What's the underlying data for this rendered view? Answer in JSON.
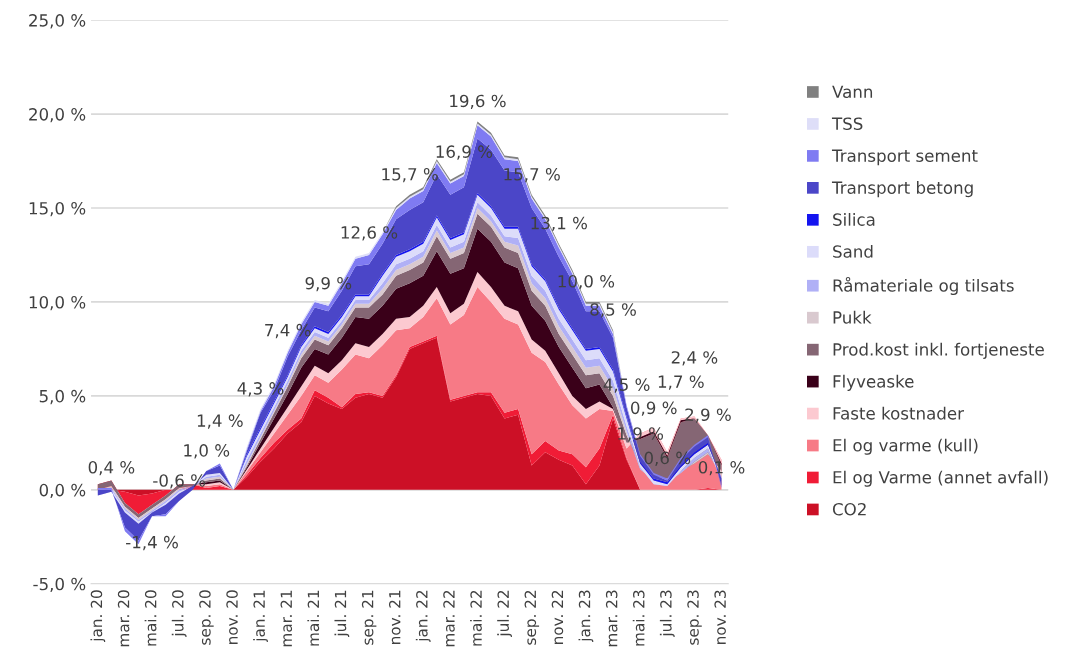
{
  "chart_data": {
    "type": "area",
    "stacked": true,
    "categories": [
      "jan. 20",
      null,
      "mar. 20",
      null,
      "mai. 20",
      null,
      "jul. 20",
      null,
      "sep. 20",
      null,
      "nov. 20",
      null,
      "jan. 21",
      null,
      "mar. 21",
      null,
      "mai. 21",
      null,
      "jul. 21",
      null,
      "sep. 21",
      null,
      "nov. 21",
      null,
      "jan. 22",
      null,
      "mar. 22",
      null,
      "mai. 22",
      null,
      "jul. 22",
      null,
      "sep. 22",
      null,
      "nov. 22",
      null,
      "jan. 23",
      null,
      "mar. 23",
      null,
      "mai. 23",
      null,
      "jul. 23",
      null,
      "sep. 23",
      null,
      "nov. 23"
    ],
    "series": [
      {
        "name": "CO2",
        "color": "#cc1026",
        "values": [
          0,
          0,
          -0.1,
          -0.3,
          -0.2,
          0,
          0,
          0,
          0,
          0,
          0,
          0.7,
          1.5,
          2.2,
          3.0,
          3.6,
          5.0,
          4.6,
          4.3,
          4.9,
          5.1,
          4.9,
          6.0,
          7.5,
          7.8,
          8.1,
          4.7,
          4.9,
          5.1,
          5.0,
          3.8,
          4.0,
          1.3,
          2.0,
          1.6,
          1.3,
          0.3,
          1.3,
          3.8,
          1.6,
          0,
          0,
          0,
          0,
          0,
          0,
          0
        ]
      },
      {
        "name": "El og Varme (annet avfall)",
        "color": "#f01c36",
        "values": [
          0.3,
          0.5,
          -0.6,
          -1.0,
          -0.6,
          -0.3,
          0.3,
          0.3,
          0.1,
          0.2,
          0,
          0.1,
          0.2,
          0.3,
          0.2,
          0.2,
          0.3,
          0.3,
          0.1,
          0.2,
          0.1,
          0.1,
          0.1,
          0.1,
          0.1,
          0.1,
          0.1,
          0.1,
          0.1,
          0.2,
          0.3,
          0.3,
          0.6,
          0.6,
          0.5,
          0.6,
          0.9,
          0.9,
          0.2,
          0.1,
          0,
          0,
          0,
          0,
          0,
          0.1,
          0
        ]
      },
      {
        "name": "El og varme (kull)",
        "color": "#f77a86",
        "values": [
          0,
          0,
          0,
          0,
          0,
          0,
          0,
          0,
          0.1,
          0.1,
          0,
          0.2,
          0.3,
          0.5,
          0.8,
          1.2,
          0.8,
          0.8,
          2.0,
          2.1,
          1.8,
          2.7,
          2.4,
          1.0,
          1.3,
          2.0,
          4.0,
          4.3,
          5.6,
          4.8,
          5.0,
          4.5,
          5.4,
          4.2,
          3.5,
          2.6,
          2.6,
          2.1,
          0.2,
          0.5,
          3.0,
          3.3,
          2.0,
          3.8,
          3.9,
          2.8,
          1.6
        ]
      },
      {
        "name": "Faste kostnader",
        "color": "#fcc9d0",
        "values": [
          0,
          0,
          0,
          0,
          0,
          0,
          0,
          0,
          0.1,
          0.1,
          0,
          0.1,
          0.2,
          0.3,
          0.4,
          0.5,
          0.5,
          0.5,
          0.5,
          0.6,
          0.6,
          0.6,
          0.6,
          0.6,
          0.6,
          0.6,
          0.6,
          0.6,
          0.8,
          0.8,
          0.7,
          0.7,
          0.7,
          0.6,
          0.6,
          0.5,
          0.5,
          0.4,
          0.1,
          0.3,
          -0.2,
          -0.2,
          -0.2,
          -0.1,
          -0.1,
          0,
          -0.2
        ]
      },
      {
        "name": "Flyveaske",
        "color": "#3a0019",
        "values": [
          0,
          0,
          0,
          0,
          0,
          0,
          0,
          0,
          0.1,
          0.1,
          0,
          0.1,
          0.3,
          0.5,
          0.7,
          1.0,
          0.9,
          1.0,
          1.2,
          1.4,
          1.5,
          1.5,
          1.6,
          1.8,
          1.6,
          1.9,
          2.1,
          1.9,
          2.3,
          2.4,
          2.3,
          2.3,
          1.8,
          1.6,
          1.4,
          1.5,
          1.1,
          0.9,
          0.1,
          0,
          -0.1,
          -0.1,
          -0.1,
          -0.1,
          0,
          0,
          -0.1
        ]
      },
      {
        "name": "Prod.kost inkl. fortjeneste",
        "color": "#856674",
        "values": [
          -0.3,
          -0.3,
          -0.2,
          -0.2,
          -0.2,
          -0.2,
          -0.2,
          -0.1,
          0.1,
          0.1,
          0,
          0.1,
          0.2,
          0.3,
          0.4,
          0.5,
          0.5,
          0.5,
          0.5,
          0.5,
          0.6,
          0.6,
          0.7,
          0.7,
          0.7,
          0.8,
          0.8,
          0.8,
          0.8,
          0.8,
          0.8,
          0.8,
          0.8,
          0.8,
          0.7,
          0.7,
          0.7,
          0.6,
          0.6,
          0.4,
          -1.4,
          -2.3,
          -1.1,
          -2.6,
          -2.4,
          -1.0,
          -0.3
        ]
      },
      {
        "name": "Pukk",
        "color": "#d9c9cf",
        "values": [
          -0.1,
          -0.1,
          -0.1,
          -0.1,
          -0.1,
          -0.1,
          -0.1,
          0,
          0.1,
          0.1,
          0,
          0.1,
          0.1,
          0.1,
          0.1,
          0.2,
          0.2,
          0.2,
          0.2,
          0.2,
          0.2,
          0.3,
          0.3,
          0.3,
          0.3,
          0.3,
          0.3,
          0.3,
          0.3,
          0.3,
          0.3,
          0.4,
          0.4,
          0.4,
          0.4,
          0.4,
          0.4,
          0.4,
          0.4,
          0.2,
          -0.2,
          -0.2,
          -0.2,
          -0.1,
          0.1,
          0.1,
          -0.3
        ]
      },
      {
        "name": "Råmateriale og tilsats",
        "color": "#b0b0f6",
        "values": [
          -0.1,
          -0.1,
          -0.1,
          -0.1,
          -0.1,
          -0.1,
          -0.1,
          0,
          0.1,
          0.1,
          0,
          0.2,
          0.2,
          0.2,
          0.2,
          0.2,
          0.2,
          0.2,
          0.2,
          0.2,
          0.2,
          0.3,
          0.3,
          0.3,
          0.3,
          0.3,
          0.3,
          0.3,
          0.3,
          0.3,
          0.3,
          0.4,
          0.4,
          0.4,
          0.4,
          0.4,
          0.4,
          0.4,
          0.4,
          0.3,
          0.1,
          -0.2,
          -0.2,
          0.1,
          0.2,
          0.2,
          -0.2
        ]
      },
      {
        "name": "Sand",
        "color": "#dcdcfa",
        "values": [
          -0.1,
          -0.1,
          -0.1,
          -0.1,
          0,
          -0.1,
          -0.1,
          0,
          0.1,
          0.1,
          0,
          0.2,
          0.2,
          0.2,
          0.2,
          0.2,
          0.2,
          0.2,
          0.2,
          0.2,
          0.2,
          0.4,
          0.4,
          0.4,
          0.4,
          0.4,
          0.4,
          0.4,
          0.4,
          0.4,
          0.4,
          0.5,
          0.5,
          0.5,
          0.5,
          0.5,
          0.5,
          0.5,
          0.5,
          0.4,
          0.2,
          0.2,
          0.1,
          0.2,
          0.2,
          0.2,
          0.1
        ]
      },
      {
        "name": "Silica",
        "color": "#1414f0",
        "values": [
          0,
          0,
          0,
          0,
          0,
          0,
          0,
          0,
          0,
          0,
          0,
          0.1,
          0.1,
          0.1,
          0.1,
          0.1,
          0.1,
          0.1,
          0.1,
          0.1,
          0.1,
          0.1,
          0.1,
          0.1,
          0.1,
          0.1,
          0.1,
          0.1,
          0.1,
          0.1,
          0.1,
          0.1,
          0.1,
          0.1,
          0.1,
          0.1,
          0.1,
          0.1,
          0.1,
          0.1,
          0.1,
          0.1,
          0.1,
          0.1,
          0.1,
          0.1,
          0
        ]
      },
      {
        "name": "Transport betong",
        "color": "#4b46c8",
        "values": [
          0.3,
          0.1,
          -0.8,
          -0.9,
          -0.2,
          -0.5,
          -0.4,
          -0.2,
          0.2,
          0.4,
          0,
          0.2,
          0.8,
          0.6,
          1.0,
          0.8,
          1.0,
          1.1,
          1.3,
          1.5,
          1.6,
          1.6,
          1.9,
          2.1,
          2.1,
          2.2,
          2.3,
          2.4,
          2.9,
          3.0,
          3.0,
          2.9,
          3.0,
          2.7,
          2.7,
          2.5,
          2.0,
          1.9,
          1.7,
          0.5,
          0.3,
          0.2,
          0.1,
          0.3,
          0.3,
          0.3,
          -0.4
        ]
      },
      {
        "name": "Transport sement",
        "color": "#7f7bf2",
        "values": [
          0.1,
          0.1,
          -0.2,
          -0.2,
          0,
          -0.1,
          0,
          0,
          0,
          0.1,
          0,
          0.1,
          0.1,
          0.2,
          0.2,
          0.3,
          0.3,
          0.3,
          0.4,
          0.4,
          0.5,
          0.5,
          0.5,
          0.6,
          0.6,
          0.6,
          0.6,
          0.6,
          0.7,
          0.7,
          0.6,
          0.6,
          0.5,
          0.5,
          0.5,
          0.4,
          0.3,
          0.3,
          0.2,
          0.1,
          0.1,
          0.1,
          0.1,
          0.1,
          0.1,
          0.1,
          -0.1
        ]
      },
      {
        "name": "TSS",
        "color": "#dedef8",
        "values": [
          0,
          0,
          0,
          0,
          0,
          0,
          0,
          0,
          0,
          0,
          0,
          0.1,
          0.1,
          0.1,
          0.1,
          0.1,
          0.1,
          0.1,
          0.1,
          0.1,
          0.1,
          0.1,
          0.1,
          0.1,
          0.1,
          0.1,
          0.1,
          0.1,
          0.1,
          0.1,
          0.1,
          0.1,
          0.1,
          0.1,
          0.1,
          0.1,
          0.1,
          0.1,
          0.1,
          0,
          0,
          0,
          0,
          0,
          0,
          0,
          0
        ]
      },
      {
        "name": "Vann",
        "color": "#808080",
        "values": [
          0,
          0,
          0,
          0,
          0,
          0,
          0,
          0,
          0,
          0,
          0,
          0,
          0,
          0,
          0,
          0,
          0,
          0,
          0,
          0,
          0,
          0,
          0.1,
          0.1,
          0.1,
          0.1,
          0.1,
          0.1,
          0.1,
          0.1,
          0.1,
          0.1,
          0.1,
          0.1,
          0.1,
          0.1,
          0.1,
          0.1,
          0.1,
          0,
          0,
          0,
          0,
          0,
          0,
          0,
          0
        ]
      }
    ],
    "totals": [
      null,
      "0,4 %",
      null,
      null,
      "-1,4 %",
      null,
      "-0,6 %",
      null,
      "1,0 %",
      "1,4 %",
      null,
      null,
      "4,3 %",
      null,
      "7,4 %",
      null,
      null,
      "9,9 %",
      null,
      null,
      "12,6 %",
      null,
      null,
      "15,7 %",
      null,
      null,
      null,
      "16,9 %",
      "19,6 %",
      null,
      null,
      null,
      "15,7 %",
      null,
      "13,1 %",
      null,
      "10,0 %",
      null,
      "8,5 %",
      "4,5 %",
      "1,9 %",
      "0,9 %",
      "0,6 %",
      "1,7 %",
      "2,4 %",
      "2,9 %",
      "0,1 %"
    ],
    "ylim": [
      -5,
      25
    ],
    "yticks": [
      {
        "value": -5,
        "label": "-5,0 %"
      },
      {
        "value": 0,
        "label": "0,0 %"
      },
      {
        "value": 5,
        "label": "5,0 %"
      },
      {
        "value": 10,
        "label": "10,0 %"
      },
      {
        "value": 15,
        "label": "15,0 %"
      },
      {
        "value": 20,
        "label": "20,0 %"
      },
      {
        "value": 25,
        "label": "25,0 %"
      }
    ],
    "grid": "y",
    "legend": "right"
  }
}
